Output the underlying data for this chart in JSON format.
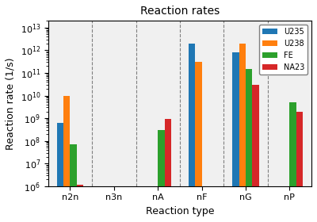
{
  "title": "Reaction rates",
  "xlabel": "Reaction type",
  "ylabel": "Reaction rate (1/s)",
  "categories": [
    "n2n",
    "n3n",
    "nA",
    "nF",
    "nG",
    "nP"
  ],
  "series": {
    "U235": [
      600000000.0,
      0,
      0,
      2000000000000.0,
      800000000000.0,
      0
    ],
    "U238": [
      10000000000.0,
      0,
      0,
      300000000000.0,
      2000000000000.0,
      0
    ],
    "FE": [
      70000000.0,
      0,
      300000000.0,
      0,
      150000000000.0,
      5000000000.0
    ],
    "NA23": [
      1200000.0,
      0,
      900000000.0,
      0,
      30000000000.0,
      2000000000.0
    ]
  },
  "colors": {
    "U235": "#1f77b4",
    "U238": "#ff7f0e",
    "FE": "#2ca02c",
    "NA23": "#d62728"
  },
  "ylim": [
    1000000.0,
    20000000000000.0
  ],
  "bar_width": 0.15,
  "figsize": [
    4.0,
    2.8
  ],
  "dpi": 100
}
